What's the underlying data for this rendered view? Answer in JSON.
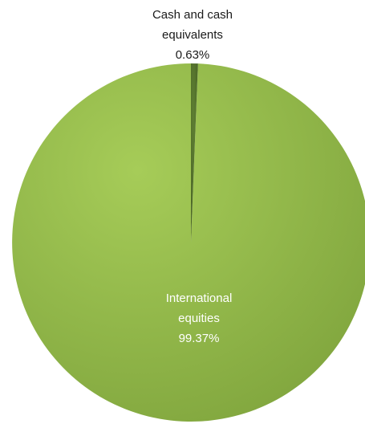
{
  "chart_data": {
    "type": "pie",
    "title": "",
    "slices": [
      {
        "label_lines": [
          "International",
          "equities"
        ],
        "value": 99.37,
        "value_label": "99.37%",
        "color": "#8db545",
        "label_color": "#ffffff"
      },
      {
        "label_lines": [
          "Cash and cash",
          "equivalents"
        ],
        "value": 0.63,
        "value_label": "0.63%",
        "color": "#4f6d2a",
        "label_color": "#1a1a1a"
      }
    ],
    "legend": "none"
  }
}
